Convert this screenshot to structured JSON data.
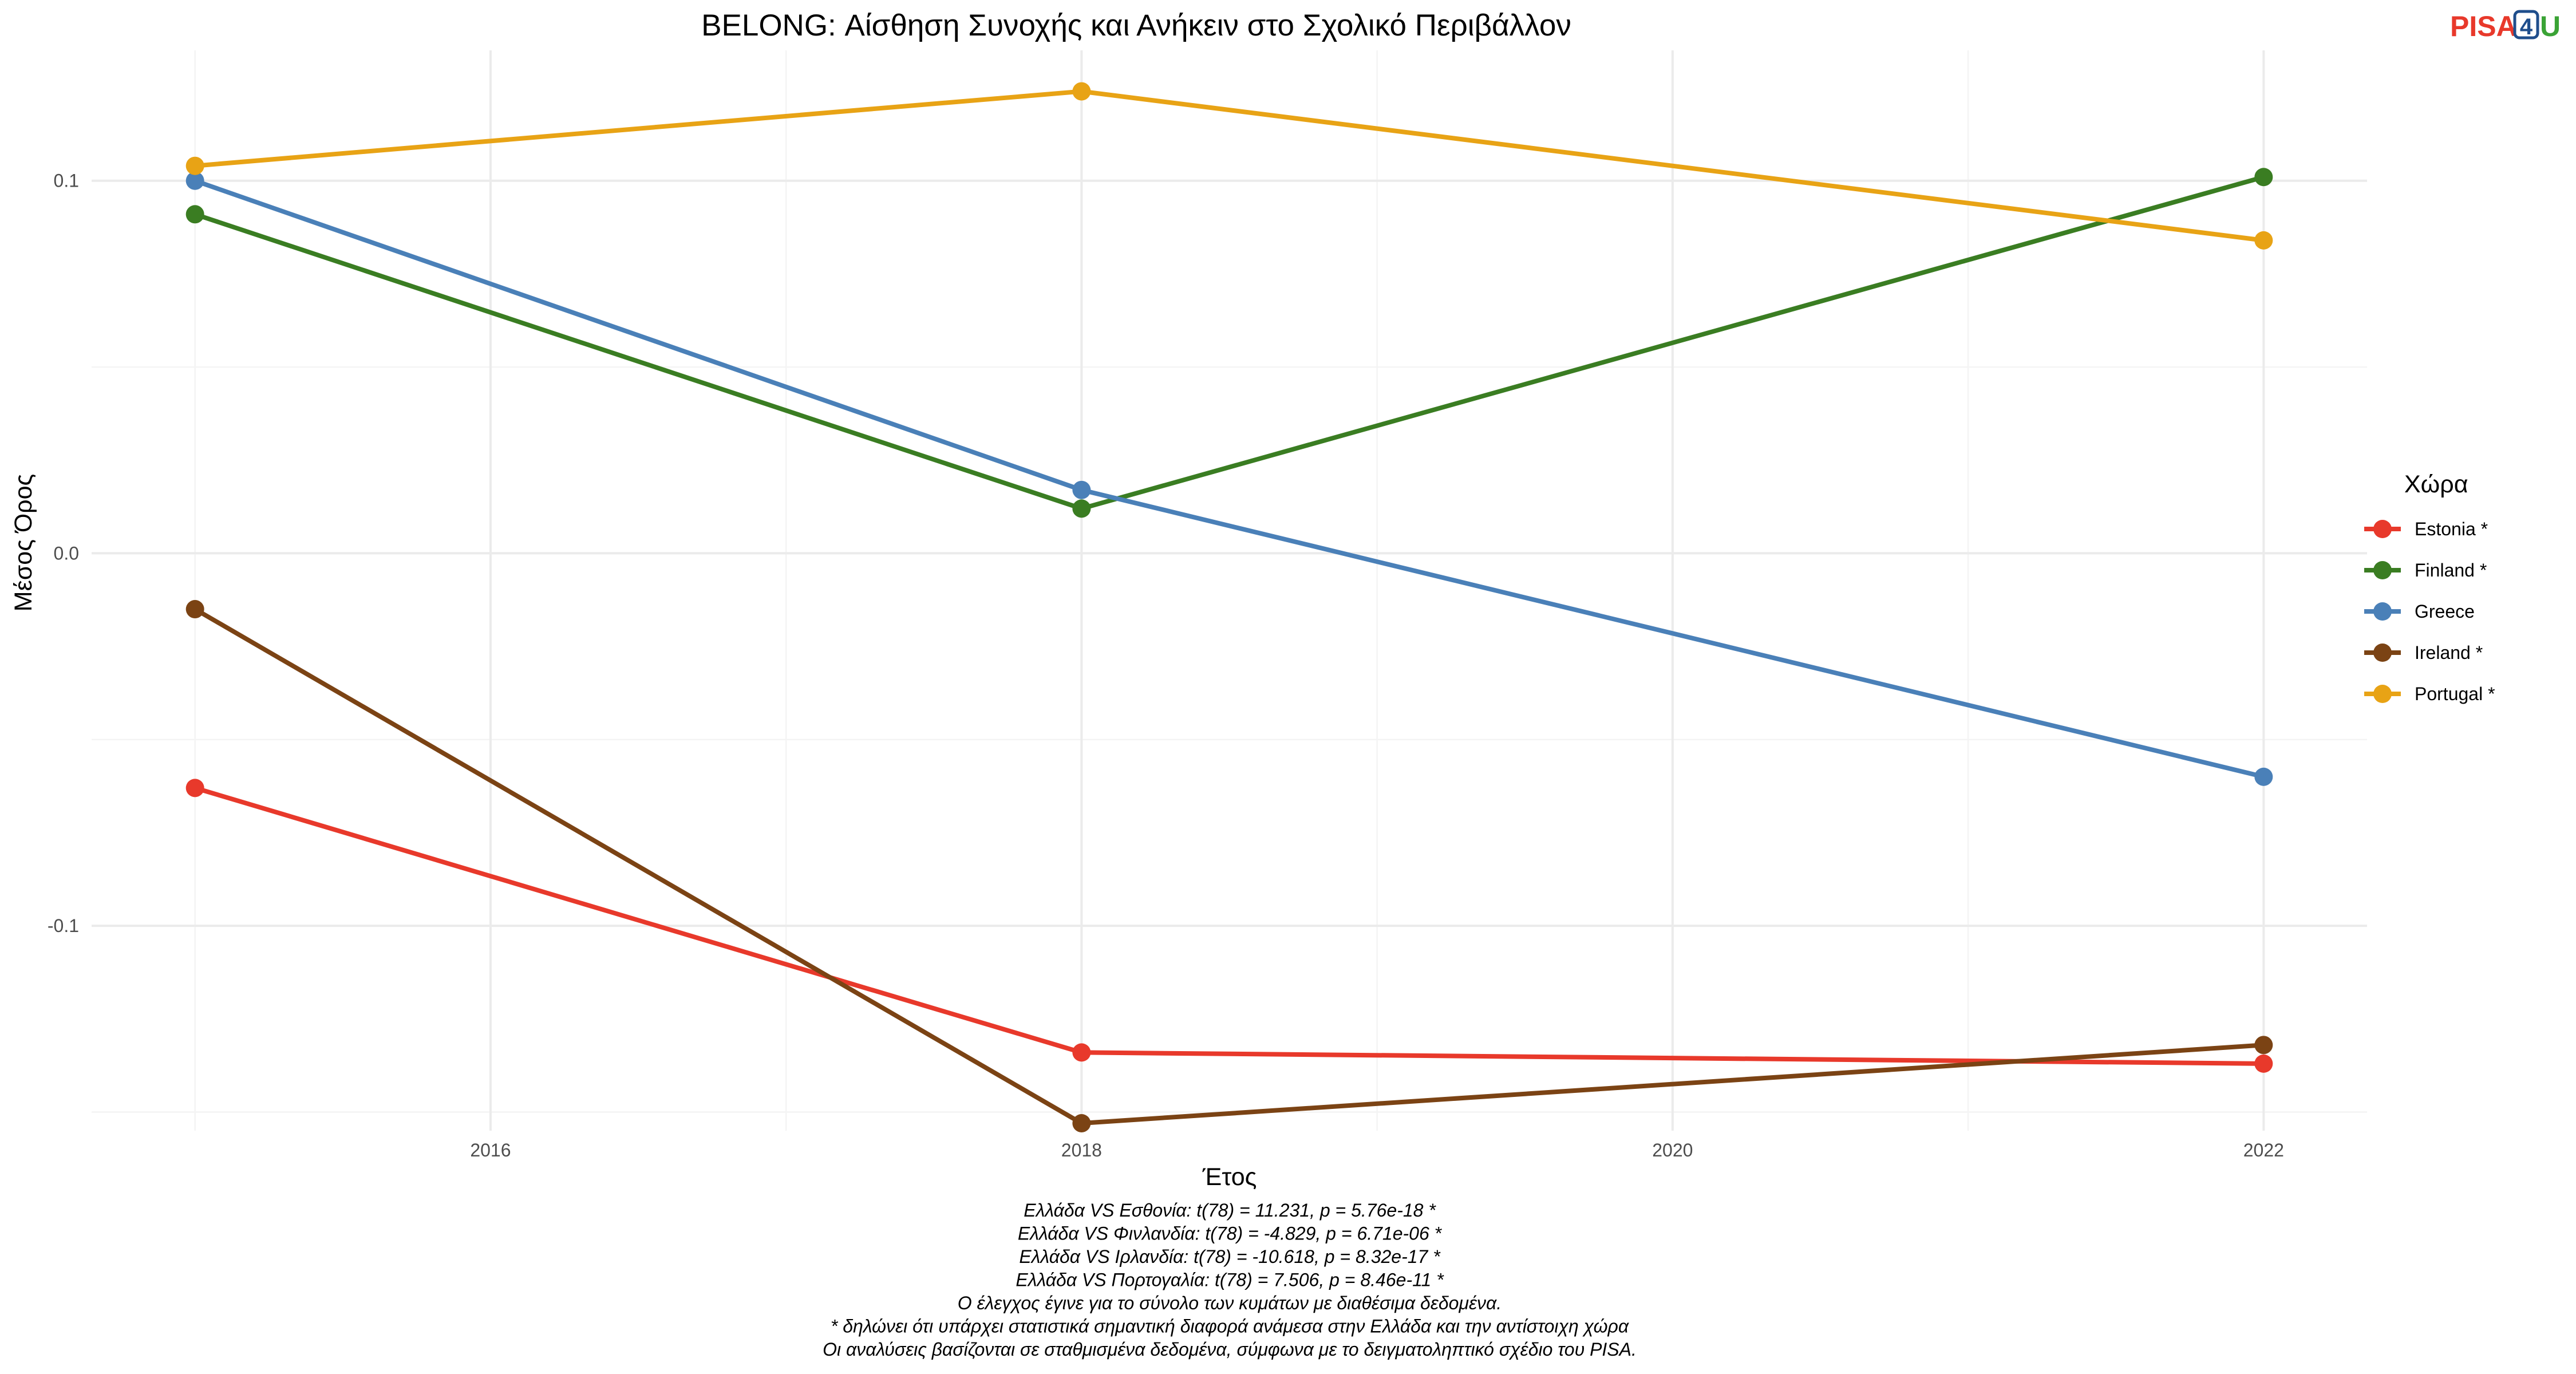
{
  "chart_data": {
    "type": "line",
    "title": "BELONG: Αίσθηση Συνοχής και Ανήκειν στο Σχολικό Περιβάλλον",
    "xlabel": "Έτος",
    "ylabel": "Μέσος Όρος",
    "x": [
      2015,
      2018,
      2022
    ],
    "xlim": [
      2014.65,
      2022.35
    ],
    "ylim": [
      -0.155,
      0.135
    ],
    "x_ticks": [
      2016,
      2018,
      2020,
      2022
    ],
    "x_tick_labels": [
      "2016",
      "2018",
      "2020",
      "2022"
    ],
    "y_ticks": [
      -0.1,
      0.0,
      0.1
    ],
    "y_tick_labels": [
      "-0.1",
      "0.0",
      "0.1"
    ],
    "grid": true,
    "legend": {
      "title": "Χώρα",
      "position": "right"
    },
    "series": [
      {
        "name": "Estonia *",
        "color": "#e8392b",
        "values": [
          -0.063,
          -0.134,
          -0.137
        ]
      },
      {
        "name": "Finland *",
        "color": "#3a7d22",
        "values": [
          0.091,
          0.012,
          0.101
        ]
      },
      {
        "name": "Greece",
        "color": "#4a80b8",
        "values": [
          0.1,
          0.017,
          -0.06
        ]
      },
      {
        "name": "Ireland *",
        "color": "#7b4314",
        "values": [
          -0.015,
          -0.153,
          -0.132
        ]
      },
      {
        "name": "Portugal *",
        "color": "#e8a315",
        "values": [
          0.104,
          0.124,
          0.084
        ]
      }
    ],
    "caption": [
      "Ελλάδα VS Εσθονία: t(78) = 11.231, p = 5.76e-18 *",
      "Ελλάδα VS Φινλανδία: t(78) = -4.829, p = 6.71e-06 *",
      "Ελλάδα VS Ιρλανδία: t(78) = -10.618, p = 8.32e-17 *",
      "Ελλάδα VS Πορτογαλία: t(78) = 7.506, p = 8.46e-11 *",
      "Ο έλεγχος έγινε για το σύνολο των κυμάτων με διαθέσιμα δεδομένα.",
      "* δηλώνει ότι υπάρχει στατιστικά σημαντική διαφορά ανάμεσα στην Ελλάδα και την αντίστοιχη χώρα",
      "Οι αναλύσεις βασίζονται σε σταθμισμένα δεδομένα, σύμφωνα με το δειγματοληπτικό σχέδιο του PISA."
    ]
  },
  "logo": {
    "text_left": "PISA",
    "text_number": "4",
    "text_right": "U",
    "color_left": "#e8392b",
    "color_number": "#1f4e8c",
    "color_right": "#3aa335"
  }
}
